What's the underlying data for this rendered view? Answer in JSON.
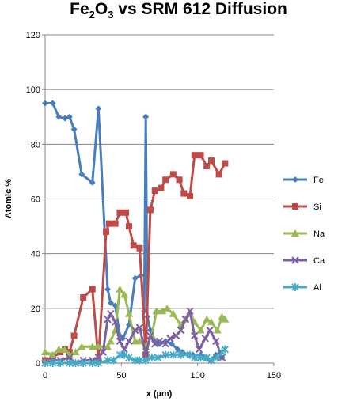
{
  "chart_data": {
    "type": "line",
    "title_parts": {
      "a": "Fe",
      "a_sub": "2",
      "b": "O",
      "b_sub": "3",
      "rest": " vs SRM 612 Diffusion"
    },
    "xlabel": "x (µm)",
    "ylabel": "Atomic %",
    "xlim": [
      0,
      150
    ],
    "ylim": [
      0,
      120
    ],
    "xticks": [
      0,
      50,
      100,
      150
    ],
    "yticks": [
      0,
      20,
      40,
      60,
      80,
      100,
      120
    ],
    "grid": "horizontal",
    "legend_position": "right",
    "series": [
      {
        "name": "Fe",
        "color": "#4A7EBB",
        "marker": "diamond",
        "points": [
          [
            0,
            95
          ],
          [
            5,
            95
          ],
          [
            9,
            90
          ],
          [
            13,
            89.5
          ],
          [
            16,
            90
          ],
          [
            19,
            85.5
          ],
          [
            24,
            69
          ],
          [
            31,
            66
          ],
          [
            35,
            93
          ],
          [
            41,
            27
          ],
          [
            43,
            22
          ],
          [
            46,
            21
          ],
          [
            49,
            10
          ],
          [
            51,
            9
          ],
          [
            55,
            14
          ],
          [
            59,
            31
          ],
          [
            63,
            32
          ],
          [
            65,
            19
          ],
          [
            66,
            90
          ],
          [
            67,
            17
          ],
          [
            69,
            12
          ],
          [
            72,
            8
          ],
          [
            75,
            7
          ],
          [
            79,
            8
          ],
          [
            83,
            7
          ],
          [
            87,
            5
          ],
          [
            90,
            4
          ],
          [
            94,
            3
          ],
          [
            97,
            3
          ],
          [
            102,
            3
          ],
          [
            105,
            2
          ],
          [
            108,
            1
          ],
          [
            112,
            3
          ],
          [
            114,
            3
          ],
          [
            116,
            2
          ]
        ]
      },
      {
        "name": "Si",
        "color": "#BE4B48",
        "marker": "square",
        "points": [
          [
            0,
            1
          ],
          [
            5,
            2
          ],
          [
            10,
            4
          ],
          [
            13,
            5
          ],
          [
            16,
            4
          ],
          [
            19,
            10
          ],
          [
            25,
            24
          ],
          [
            31,
            27
          ],
          [
            35,
            1
          ],
          [
            40,
            48
          ],
          [
            42,
            51
          ],
          [
            46,
            51
          ],
          [
            49,
            55
          ],
          [
            53,
            55
          ],
          [
            55,
            50
          ],
          [
            58,
            43
          ],
          [
            62,
            42
          ],
          [
            66,
            3
          ],
          [
            69,
            56
          ],
          [
            72,
            63
          ],
          [
            76,
            64
          ],
          [
            79,
            67
          ],
          [
            84,
            69
          ],
          [
            88,
            67
          ],
          [
            91,
            62
          ],
          [
            95,
            61
          ],
          [
            98,
            76
          ],
          [
            102,
            76
          ],
          [
            106,
            72
          ],
          [
            109,
            74
          ],
          [
            114,
            69
          ],
          [
            118,
            73
          ]
        ]
      },
      {
        "name": "Na",
        "color": "#98B954",
        "marker": "triangle",
        "points": [
          [
            0,
            4
          ],
          [
            5,
            3
          ],
          [
            9,
            5
          ],
          [
            13,
            5
          ],
          [
            16,
            3
          ],
          [
            20,
            4
          ],
          [
            24,
            6
          ],
          [
            31,
            6
          ],
          [
            35,
            6
          ],
          [
            41,
            6
          ],
          [
            43,
            8
          ],
          [
            46,
            12
          ],
          [
            49,
            27
          ],
          [
            52,
            25
          ],
          [
            55,
            18
          ],
          [
            59,
            8
          ],
          [
            62,
            8
          ],
          [
            66,
            6
          ],
          [
            70,
            10
          ],
          [
            73,
            19
          ],
          [
            77,
            19
          ],
          [
            80,
            20
          ],
          [
            84,
            18
          ],
          [
            89,
            14
          ],
          [
            92,
            16
          ],
          [
            95,
            18
          ],
          [
            98,
            15
          ],
          [
            102,
            12
          ],
          [
            106,
            16
          ],
          [
            109,
            15
          ],
          [
            113,
            12
          ],
          [
            116,
            17
          ],
          [
            118,
            16
          ]
        ]
      },
      {
        "name": "Ca",
        "color": "#7D60A0",
        "marker": "x",
        "points": [
          [
            0,
            0
          ],
          [
            5,
            1
          ],
          [
            10,
            1
          ],
          [
            16,
            2
          ],
          [
            20,
            0
          ],
          [
            25,
            1
          ],
          [
            31,
            1
          ],
          [
            35,
            2
          ],
          [
            38,
            4
          ],
          [
            41,
            16
          ],
          [
            43,
            18
          ],
          [
            46,
            15
          ],
          [
            49,
            8
          ],
          [
            52,
            5
          ],
          [
            55,
            8
          ],
          [
            59,
            12
          ],
          [
            62,
            13
          ],
          [
            66,
            3
          ],
          [
            69,
            10
          ],
          [
            72,
            7
          ],
          [
            75,
            8
          ],
          [
            79,
            7
          ],
          [
            82,
            9
          ],
          [
            86,
            10
          ],
          [
            89,
            12
          ],
          [
            92,
            16
          ],
          [
            95,
            19
          ],
          [
            98,
            10
          ],
          [
            101,
            5
          ],
          [
            105,
            9
          ],
          [
            108,
            12
          ],
          [
            112,
            8
          ],
          [
            116,
            2
          ]
        ]
      },
      {
        "name": "Al",
        "color": "#46AAC5",
        "marker": "asterisk",
        "points": [
          [
            0,
            0
          ],
          [
            5,
            0
          ],
          [
            10,
            0
          ],
          [
            16,
            0
          ],
          [
            20,
            0
          ],
          [
            25,
            0
          ],
          [
            31,
            0
          ],
          [
            35,
            0
          ],
          [
            41,
            1
          ],
          [
            45,
            1
          ],
          [
            49,
            3
          ],
          [
            52,
            3
          ],
          [
            55,
            2
          ],
          [
            59,
            1
          ],
          [
            62,
            1
          ],
          [
            66,
            1
          ],
          [
            70,
            2
          ],
          [
            74,
            2
          ],
          [
            79,
            3
          ],
          [
            84,
            3
          ],
          [
            89,
            3
          ],
          [
            95,
            3
          ],
          [
            98,
            2
          ],
          [
            102,
            2
          ],
          [
            106,
            2
          ],
          [
            109,
            1
          ],
          [
            113,
            2
          ],
          [
            116,
            4
          ],
          [
            118,
            5
          ]
        ]
      }
    ]
  }
}
